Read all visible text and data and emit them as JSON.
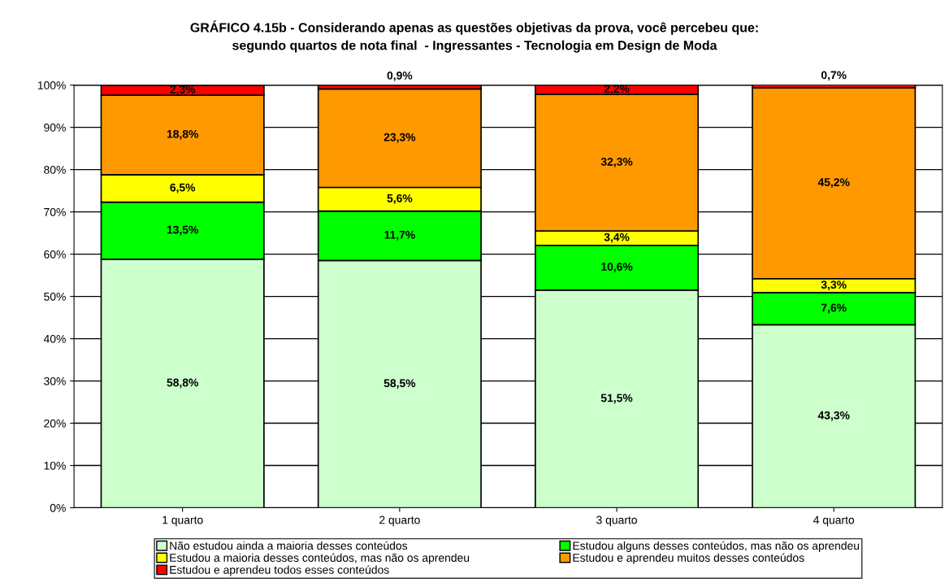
{
  "chart_data": {
    "type": "bar",
    "stacked": true,
    "title": "GRÁFICO 4.15b - Considerando apenas as questões objetivas da prova, você percebeu que:\nsegundo quartos de nota final  - Ingressantes - Tecnologia em Design de Moda",
    "categories": [
      "1 quarto",
      "2 quarto",
      "3 quarto",
      "4 quarto"
    ],
    "series": [
      {
        "name": "Não estudou ainda a maioria desses conteúdos",
        "color": "#ccffcc",
        "values": [
          58.8,
          58.5,
          51.5,
          43.3
        ],
        "value_labels": [
          "58,8%",
          "58,5%",
          "51,5%",
          "43,3%"
        ]
      },
      {
        "name": "Estudou alguns desses conteúdos, mas não os aprendeu",
        "color": "#00ff00",
        "values": [
          13.5,
          11.7,
          10.6,
          7.6
        ],
        "value_labels": [
          "13,5%",
          "11,7%",
          "10,6%",
          "7,6%"
        ]
      },
      {
        "name": "Estudou a maioria desses conteúdos, mas não os aprendeu",
        "color": "#ffff00",
        "values": [
          6.5,
          5.6,
          3.4,
          3.3
        ],
        "value_labels": [
          "6,5%",
          "5,6%",
          "3,4%",
          "3,3%"
        ]
      },
      {
        "name": "Estudou e aprendeu muitos desses conteúdos",
        "color": "#ff9900",
        "values": [
          18.8,
          23.3,
          32.3,
          45.2
        ],
        "value_labels": [
          "18,8%",
          "23,3%",
          "32,3%",
          "45,2%"
        ]
      },
      {
        "name": "Estudou e aprendeu todos esses conteúdos",
        "color": "#ff0000",
        "values": [
          2.3,
          0.9,
          2.2,
          0.7
        ],
        "value_labels": [
          "2,3%",
          "0,9%",
          "2,2%",
          "0,7%"
        ]
      }
    ],
    "ylim": [
      0,
      100
    ],
    "yticks": [
      {
        "value": 0,
        "label": "0%"
      },
      {
        "value": 10,
        "label": "10%"
      },
      {
        "value": 20,
        "label": "20%"
      },
      {
        "value": 30,
        "label": "30%"
      },
      {
        "value": 40,
        "label": "40%"
      },
      {
        "value": 50,
        "label": "50%"
      },
      {
        "value": 60,
        "label": "60%"
      },
      {
        "value": 70,
        "label": "70%"
      },
      {
        "value": 80,
        "label": "80%"
      },
      {
        "value": 90,
        "label": "90%"
      },
      {
        "value": 100,
        "label": "100%"
      }
    ],
    "grid": "y",
    "legend": "bottom"
  }
}
